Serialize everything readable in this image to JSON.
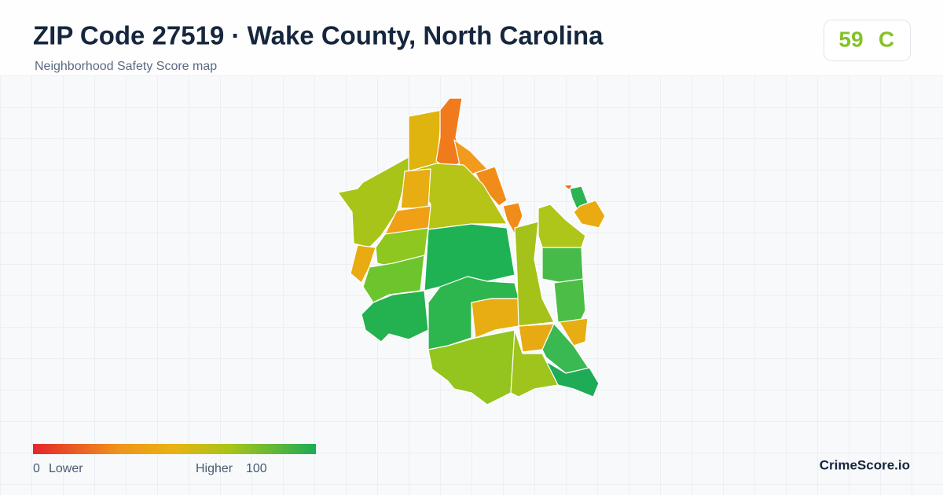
{
  "header": {
    "title": "ZIP Code 27519 · Wake County, North Carolina",
    "subtitle": "Neighborhood Safety Score map"
  },
  "score": {
    "value": 59,
    "grade": "C"
  },
  "legend": {
    "min": 0,
    "min_label": "Lower",
    "max_label": "Higher",
    "max": 100
  },
  "brand": "CrimeScore.io"
}
